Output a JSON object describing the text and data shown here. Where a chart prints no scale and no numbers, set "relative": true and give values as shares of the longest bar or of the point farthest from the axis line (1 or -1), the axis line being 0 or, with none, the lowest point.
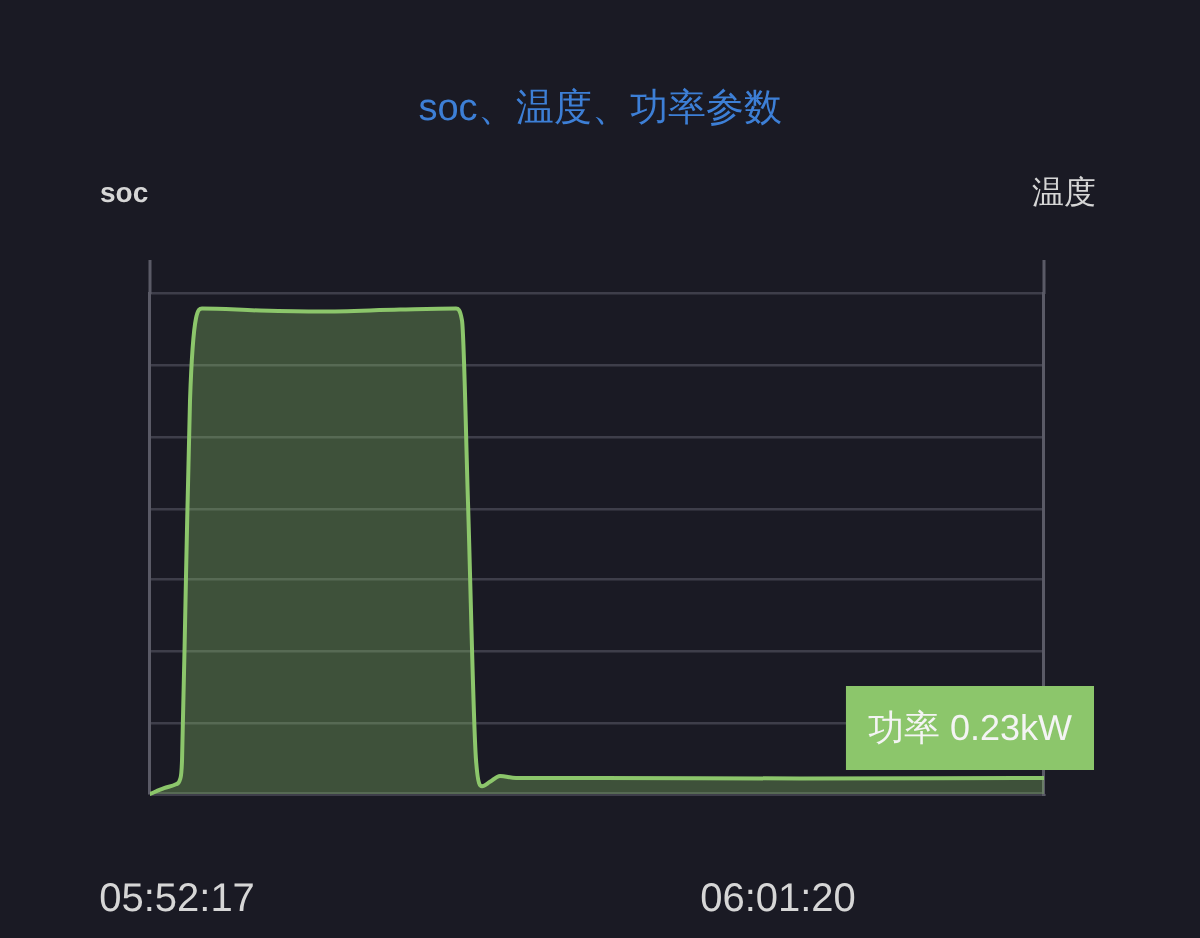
{
  "chart_data": {
    "type": "area",
    "title": "soc、温度、功率参数",
    "ylabel": "soc",
    "y2label": "温度",
    "annotations": [
      "功率 0.23kW"
    ],
    "x": [
      5.86461,
      5.86813,
      5.87114,
      5.87214,
      5.87265,
      5.87365,
      5.87465,
      5.87616,
      5.87766,
      5.89222,
      5.90728,
      5.92736,
      5.94141,
      5.94292,
      5.94442,
      5.94643,
      5.94794,
      5.94994,
      5.95245,
      5.95647,
      5.97755,
      6.02774,
      6.08898
    ],
    "values": [
      0,
      0.012,
      0.02,
      0.03,
      0.07,
      0.45,
      0.81,
      0.98,
      1,
      0.996,
      0.994,
      0.998,
      1,
      0.975,
      0.6,
      0.07,
      0.016,
      0.025,
      0.037,
      0.033,
      0.033,
      0.032,
      0.033
    ],
    "color": "#8cc66b",
    "relative": true,
    "xlim": [
      5.86461,
      6.08898
    ],
    "xticks": [
      {
        "value": 5.871389,
        "label": "05:52:17"
      },
      {
        "value": 6.022222,
        "label": "06:01:20"
      }
    ],
    "grid": "y",
    "marker": "none",
    "line_style": "solid"
  }
}
